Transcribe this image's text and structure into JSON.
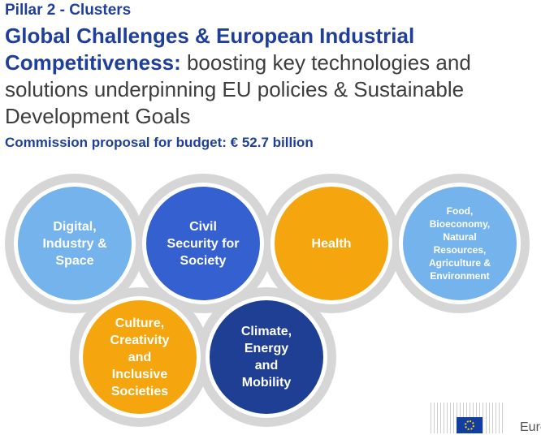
{
  "header": {
    "pillar": "Pillar 2 - Clusters",
    "title": "Global Challenges & European Industrial Competitiveness:",
    "subtitle": "boosting key technologies and solutions underpinning EU policies & Sustainable Development Goals",
    "budget": "Commission proposal for budget: € 52.7 billion"
  },
  "clusters": [
    {
      "label": "Digital, Industry & Space",
      "color": "#74b3ec"
    },
    {
      "label": "Civil Security for Society",
      "color": "#3461cf"
    },
    {
      "label": "Health",
      "color": "#f5a60f"
    },
    {
      "label": "Food, Bioeconomy, Natural Resources, Agriculture & Environment",
      "color": "#74b3ec"
    },
    {
      "label": "Culture, Creativity and Inclusive Societies",
      "color": "#f5a60f"
    },
    {
      "label": "Climate, Energy and Mobility",
      "color": "#1f3f94"
    }
  ],
  "logo": {
    "text": "Euro"
  }
}
